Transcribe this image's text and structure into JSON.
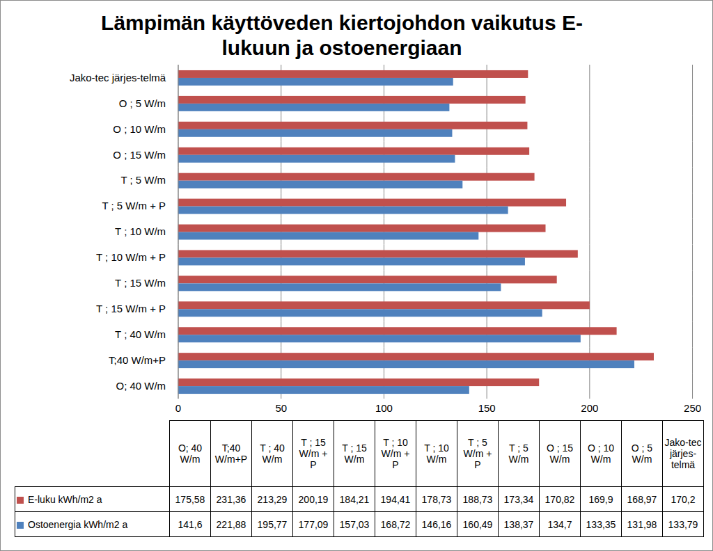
{
  "chart_data": {
    "type": "bar",
    "orientation": "horizontal",
    "title": "Lämpimän käyttöveden kiertojohdon vaikutus E-lukuun ja ostoenergiaan",
    "categories": [
      "O; 40 W/m",
      "T;40 W/m+P",
      "T ; 40 W/m",
      "T ; 15 W/m + P",
      "T ; 15 W/m",
      "T ; 10 W/m + P",
      "T ; 10 W/m",
      "T ; 5 W/m + P",
      "T ; 5 W/m",
      "O ; 15 W/m",
      "O ; 10 W/m",
      "O ; 5 W/m",
      "Jako-tec järjes-telmä"
    ],
    "series": [
      {
        "name": "E-luku kWh/m2 a",
        "color": "#c0504d",
        "values": [
          175.58,
          231.36,
          213.29,
          200.19,
          184.21,
          194.41,
          178.73,
          188.73,
          173.34,
          170.82,
          169.9,
          168.97,
          170.2
        ],
        "value_labels": [
          "175,58",
          "231,36",
          "213,29",
          "200,19",
          "184,21",
          "194,41",
          "178,73",
          "188,73",
          "173,34",
          "170,82",
          "169,9",
          "168,97",
          "170,2"
        ]
      },
      {
        "name": "Ostoenergia kWh/m2 a",
        "color": "#4f81bd",
        "values": [
          141.6,
          221.88,
          195.77,
          177.09,
          157.03,
          168.72,
          146.16,
          160.49,
          138.37,
          134.7,
          133.35,
          131.98,
          133.79
        ],
        "value_labels": [
          "141,6",
          "221,88",
          "195,77",
          "177,09",
          "157,03",
          "168,72",
          "146,16",
          "160,49",
          "138,37",
          "134,7",
          "133,35",
          "131,98",
          "133,79"
        ]
      }
    ],
    "xlim": [
      0,
      250
    ],
    "xticks": [
      0,
      50,
      100,
      150,
      200,
      250
    ],
    "grid": true
  }
}
